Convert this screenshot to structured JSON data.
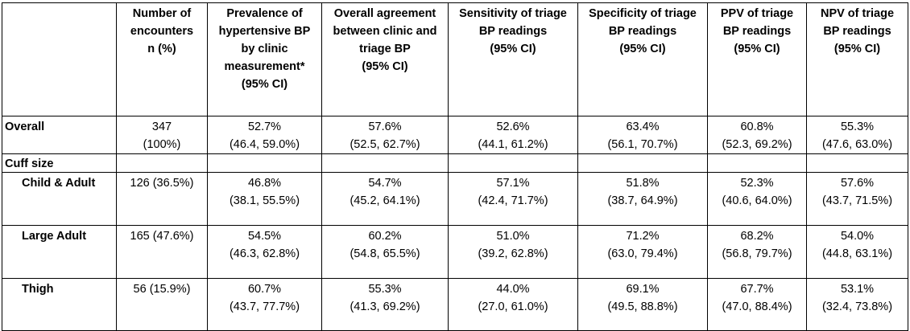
{
  "headers": [
    {
      "lines": [
        ""
      ]
    },
    {
      "lines": [
        "Number of",
        "encounters",
        "n (%)"
      ]
    },
    {
      "lines": [
        "Prevalence of",
        "hypertensive BP",
        "by clinic",
        "measurement*",
        "(95% CI)"
      ]
    },
    {
      "lines": [
        "Overall agreement",
        "between clinic and",
        "triage BP",
        "(95% CI)"
      ]
    },
    {
      "lines": [
        "Sensitivity of triage",
        "BP readings",
        "(95% CI)"
      ]
    },
    {
      "lines": [
        "Specificity of triage",
        "BP readings",
        "(95% CI)"
      ]
    },
    {
      "lines": [
        "PPV of triage",
        "BP readings",
        "(95% CI)"
      ]
    },
    {
      "lines": [
        "NPV of triage",
        "BP readings",
        "(95% CI)"
      ]
    }
  ],
  "rows": [
    {
      "label": "Overall",
      "cells": [
        [
          "347",
          "(100%)"
        ],
        [
          "52.7%",
          "(46.4, 59.0%)"
        ],
        [
          "57.6%",
          "(52.5, 62.7%)"
        ],
        [
          "52.6%",
          "(44.1, 61.2%)"
        ],
        [
          "63.4%",
          "(56.1, 70.7%)"
        ],
        [
          "60.8%",
          "(52.3, 69.2%)"
        ],
        [
          "55.3%",
          "(47.6, 63.0%)"
        ]
      ]
    },
    {
      "label": "Cuff size",
      "cells": [
        [],
        [],
        [],
        [],
        [],
        [],
        []
      ]
    },
    {
      "label": "Child & Adult",
      "cells": [
        [
          "126 (36.5%)"
        ],
        [
          "46.8%",
          "(38.1, 55.5%)"
        ],
        [
          "54.7%",
          "(45.2, 64.1%)"
        ],
        [
          "57.1%",
          "(42.4, 71.7%)"
        ],
        [
          "51.8%",
          "(38.7, 64.9%)"
        ],
        [
          "52.3%",
          "(40.6, 64.0%)"
        ],
        [
          "57.6%",
          "(43.7, 71.5%)"
        ]
      ]
    },
    {
      "label": "Large Adult",
      "cells": [
        [
          "165 (47.6%)"
        ],
        [
          "54.5%",
          "(46.3, 62.8%)"
        ],
        [
          "60.2%",
          "(54.8, 65.5%)"
        ],
        [
          "51.0%",
          "(39.2, 62.8%)"
        ],
        [
          "71.2%",
          "(63.0, 79.4%)"
        ],
        [
          "68.2%",
          "(56.8, 79.7%)"
        ],
        [
          "54.0%",
          "(44.8, 63.1%)"
        ]
      ]
    },
    {
      "label": "Thigh",
      "cells": [
        [
          "56 (15.9%)"
        ],
        [
          "60.7%",
          "(43.7, 77.7%)"
        ],
        [
          "55.3%",
          "(41.3, 69.2%)"
        ],
        [
          "44.0%",
          "(27.0, 61.0%)"
        ],
        [
          "69.1%",
          "(49.5, 88.8%)"
        ],
        [
          "67.7%",
          "(47.0, 88.4%)"
        ],
        [
          "53.1%",
          "(32.4, 73.8%)"
        ]
      ]
    }
  ]
}
